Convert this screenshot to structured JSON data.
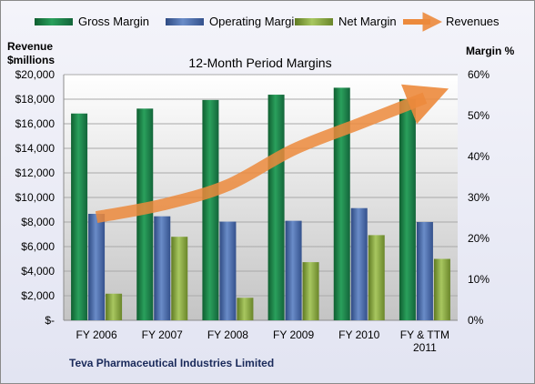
{
  "chart_data": {
    "type": "bar",
    "title": "12-Month Period Margins",
    "footer": "Teva Pharmaceutical Industries Limited",
    "left_axis_title": [
      "Revenue",
      "$millions"
    ],
    "right_axis_title": "Margin %",
    "categories": [
      [
        "FY 2006"
      ],
      [
        "FY 2007"
      ],
      [
        "FY 2008"
      ],
      [
        "FY 2009"
      ],
      [
        "FY 2010"
      ],
      [
        "FY & TTM",
        "2011"
      ]
    ],
    "y_left_ticks": [
      "$-",
      "$2,000",
      "$4,000",
      "$6,000",
      "$8,000",
      "$10,000",
      "$12,000",
      "$14,000",
      "$16,000",
      "$18,000",
      "$20,000"
    ],
    "y_right_ticks": [
      "0%",
      "10%",
      "20%",
      "30%",
      "40%",
      "50%",
      "60%"
    ],
    "ylim_left": [
      0,
      20000
    ],
    "ylim_right": [
      0,
      60
    ],
    "series": [
      {
        "name": "Gross Margin",
        "axis": "right",
        "color": "#1f8a4c",
        "values": [
          50.5,
          51.7,
          53.8,
          55.1,
          56.8,
          54.0
        ]
      },
      {
        "name": "Operating Margin",
        "axis": "right",
        "color": "#4f6fb0",
        "values": [
          26.0,
          25.4,
          24.1,
          24.3,
          27.4,
          24.0
        ]
      },
      {
        "name": "Net Margin",
        "axis": "right",
        "color": "#8fb04a",
        "values": [
          6.5,
          20.4,
          5.5,
          14.2,
          20.8,
          15.0
        ]
      }
    ],
    "revenues": {
      "name": "Revenues",
      "axis": "left",
      "color": "#ec8a3c",
      "values": [
        8400,
        9400,
        11000,
        13900,
        16000,
        18100
      ]
    },
    "grid": true,
    "legend_position": "top"
  }
}
